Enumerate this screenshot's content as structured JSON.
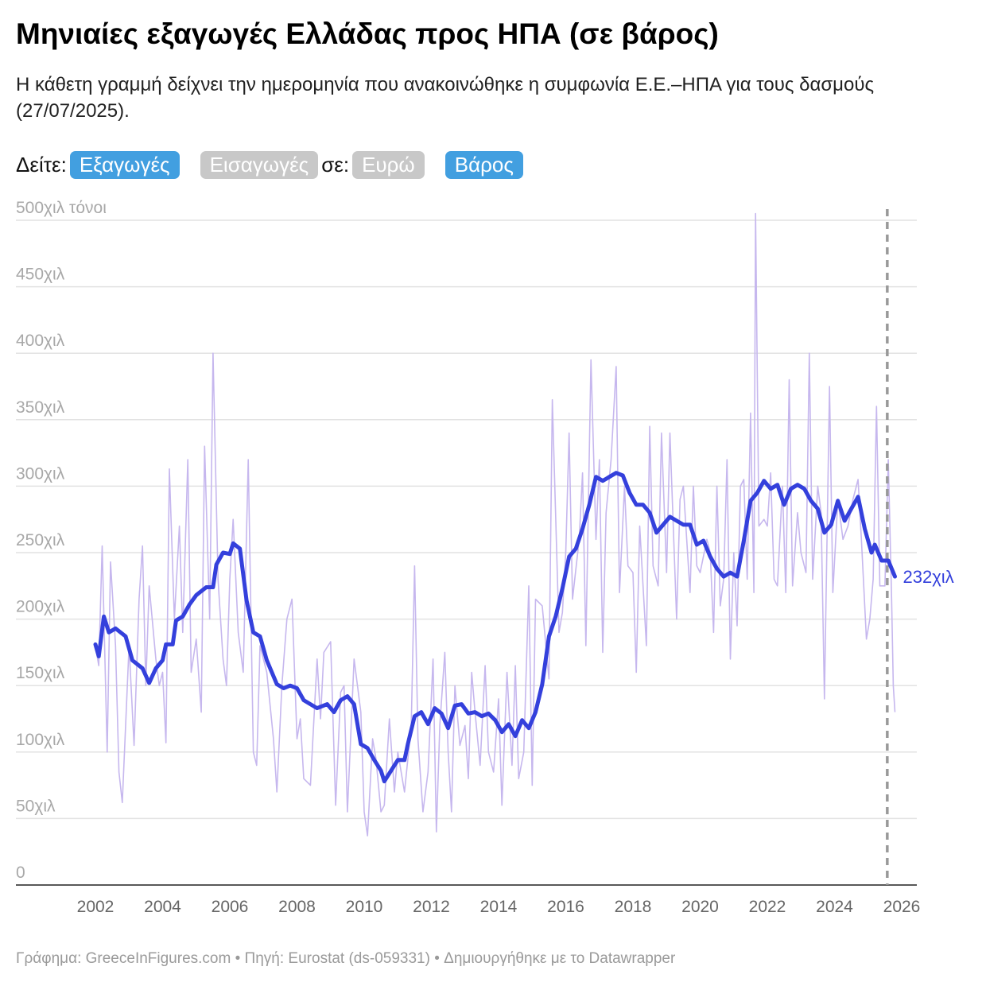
{
  "title": "Μηνιαίες εξαγωγές Ελλάδας προς ΗΠΑ (σε βάρος)",
  "subtitle": "Η κάθετη γραμμή δείχνει την ημερομηνία που ανακοινώθηκε η συμφωνία Ε.Ε.–ΗΠΑ για τους δασμούς (27/07/2025).",
  "controls": {
    "see_label": "Δείτε:",
    "exports": "Εξαγωγές",
    "imports": "Εισαγωγές",
    "in_label": "σε:",
    "euro": "Ευρώ",
    "weight": "Βάρος",
    "active_color": "#429fe0",
    "inactive_color": "#c8c8c8"
  },
  "footer": "Γράφημα: GreeceInFigures.com • Πηγή: Eurostat (ds-059331) • Δημιουργήθηκε με το Datawrapper",
  "chart_data": {
    "type": "line",
    "title": "Μηνιαίες εξαγωγές Ελλάδας προς ΗΠΑ (σε βάρος)",
    "ylabel": "",
    "unit_label": "τόνοι",
    "ylim": [
      0,
      500
    ],
    "xlim": [
      2002,
      2026
    ],
    "grid": true,
    "y_ticks": [
      "0",
      "50χιλ",
      "100χιλ",
      "150χιλ",
      "200χιλ",
      "250χιλ",
      "300χιλ",
      "350χιλ",
      "400χιλ",
      "450χιλ",
      "500χιλ τόνοι"
    ],
    "x_ticks": [
      "2002",
      "2004",
      "2006",
      "2008",
      "2010",
      "2012",
      "2014",
      "2016",
      "2018",
      "2020",
      "2022",
      "2024",
      "2026"
    ],
    "annotation_line": {
      "x": 2025.57,
      "label_date": "27/07/2025"
    },
    "end_label": "232χιλ",
    "series": [
      {
        "role": "smoothed",
        "color": "#3440dc",
        "x": [
          2002.0,
          2002.1,
          2002.25,
          2002.4,
          2002.6,
          2002.9,
          2003.1,
          2003.4,
          2003.6,
          2003.8,
          2004.0,
          2004.1,
          2004.3,
          2004.4,
          2004.6,
          2004.8,
          2005.0,
          2005.3,
          2005.5,
          2005.6,
          2005.8,
          2006.0,
          2006.1,
          2006.3,
          2006.5,
          2006.7,
          2006.9,
          2007.1,
          2007.4,
          2007.6,
          2007.8,
          2008.0,
          2008.2,
          2008.4,
          2008.6,
          2008.9,
          2009.1,
          2009.3,
          2009.5,
          2009.7,
          2009.9,
          2010.1,
          2010.3,
          2010.5,
          2010.6,
          2010.8,
          2011.0,
          2011.2,
          2011.3,
          2011.5,
          2011.7,
          2011.9,
          2012.1,
          2012.3,
          2012.5,
          2012.7,
          2012.9,
          2013.1,
          2013.3,
          2013.5,
          2013.7,
          2013.9,
          2014.1,
          2014.3,
          2014.5,
          2014.7,
          2014.9,
          2015.1,
          2015.3,
          2015.5,
          2015.7,
          2015.9,
          2016.1,
          2016.3,
          2016.5,
          2016.7,
          2016.9,
          2017.1,
          2017.3,
          2017.5,
          2017.7,
          2017.9,
          2018.1,
          2018.3,
          2018.5,
          2018.7,
          2018.9,
          2019.1,
          2019.3,
          2019.5,
          2019.7,
          2019.9,
          2020.1,
          2020.3,
          2020.5,
          2020.7,
          2020.9,
          2021.1,
          2021.3,
          2021.5,
          2021.7,
          2021.9,
          2022.1,
          2022.3,
          2022.5,
          2022.7,
          2022.9,
          2023.1,
          2023.3,
          2023.5,
          2023.7,
          2023.9,
          2024.1,
          2024.3,
          2024.5,
          2024.7,
          2024.9,
          2025.1,
          2025.2,
          2025.4,
          2025.6,
          2025.8
        ],
        "y": [
          181,
          172,
          202,
          190,
          193,
          187,
          169,
          163,
          152,
          163,
          169,
          181,
          181,
          199,
          202,
          211,
          218,
          224,
          224,
          241,
          250,
          249,
          257,
          253,
          214,
          190,
          187,
          169,
          151,
          148,
          150,
          148,
          139,
          136,
          133,
          136,
          130,
          139,
          142,
          136,
          106,
          103,
          94,
          86,
          78,
          86,
          94,
          94,
          106,
          127,
          130,
          121,
          133,
          129,
          118,
          135,
          136,
          129,
          130,
          127,
          129,
          124,
          115,
          121,
          112,
          124,
          118,
          130,
          151,
          187,
          202,
          223,
          247,
          253,
          268,
          286,
          307,
          304,
          307,
          310,
          308,
          295,
          286,
          286,
          280,
          265,
          271,
          277,
          274,
          271,
          271,
          256,
          259,
          247,
          238,
          232,
          235,
          232,
          259,
          289,
          295,
          304,
          298,
          301,
          286,
          298,
          301,
          298,
          289,
          283,
          265,
          271,
          289,
          274,
          283,
          292,
          268,
          250,
          256,
          244,
          244,
          232
        ]
      },
      {
        "role": "monthly",
        "color": "#c6b7ee",
        "x": [
          2002.0,
          2002.1,
          2002.2,
          2002.35,
          2002.45,
          2002.6,
          2002.7,
          2002.8,
          2003.0,
          2003.15,
          2003.3,
          2003.4,
          2003.5,
          2003.6,
          2003.8,
          2003.9,
          2004.0,
          2004.1,
          2004.2,
          2004.35,
          2004.5,
          2004.6,
          2004.75,
          2004.85,
          2005.0,
          2005.15,
          2005.25,
          2005.4,
          2005.5,
          2005.65,
          2005.8,
          2005.9,
          2006.0,
          2006.1,
          2006.25,
          2006.4,
          2006.55,
          2006.7,
          2006.8,
          2006.9,
          2007.1,
          2007.3,
          2007.4,
          2007.55,
          2007.7,
          2007.85,
          2008.0,
          2008.1,
          2008.2,
          2008.4,
          2008.6,
          2008.7,
          2008.8,
          2009.0,
          2009.15,
          2009.3,
          2009.4,
          2009.5,
          2009.7,
          2009.9,
          2010.0,
          2010.1,
          2010.25,
          2010.35,
          2010.5,
          2010.6,
          2010.75,
          2010.9,
          2011.0,
          2011.2,
          2011.4,
          2011.5,
          2011.6,
          2011.75,
          2011.9,
          2012.05,
          2012.15,
          2012.25,
          2012.4,
          2012.5,
          2012.6,
          2012.7,
          2012.85,
          2013.0,
          2013.1,
          2013.2,
          2013.3,
          2013.45,
          2013.6,
          2013.7,
          2013.85,
          2014.0,
          2014.1,
          2014.25,
          2014.4,
          2014.5,
          2014.6,
          2014.75,
          2014.9,
          2015.0,
          2015.1,
          2015.3,
          2015.5,
          2015.6,
          2015.8,
          2015.9,
          2016.0,
          2016.1,
          2016.2,
          2016.4,
          2016.5,
          2016.6,
          2016.75,
          2016.9,
          2017.0,
          2017.1,
          2017.2,
          2017.35,
          2017.5,
          2017.6,
          2017.75,
          2017.85,
          2018.0,
          2018.1,
          2018.2,
          2018.4,
          2018.5,
          2018.6,
          2018.75,
          2018.85,
          2019.0,
          2019.1,
          2019.3,
          2019.4,
          2019.5,
          2019.7,
          2019.8,
          2019.9,
          2020.0,
          2020.2,
          2020.3,
          2020.4,
          2020.5,
          2020.6,
          2020.7,
          2020.8,
          2020.9,
          2021.0,
          2021.1,
          2021.2,
          2021.3,
          2021.4,
          2021.5,
          2021.6,
          2021.65,
          2021.75,
          2021.9,
          2022.0,
          2022.1,
          2022.2,
          2022.3,
          2022.45,
          2022.55,
          2022.65,
          2022.75,
          2022.9,
          2023.0,
          2023.15,
          2023.25,
          2023.35,
          2023.5,
          2023.6,
          2023.7,
          2023.85,
          2023.95,
          2024.1,
          2024.25,
          2024.4,
          2024.55,
          2024.7,
          2024.8,
          2024.95,
          2025.05,
          2025.15,
          2025.25,
          2025.35,
          2025.5,
          2025.6,
          2025.7,
          2025.75,
          2025.8
        ],
        "y": [
          180,
          165,
          255,
          100,
          243,
          180,
          85,
          62,
          180,
          105,
          215,
          255,
          150,
          225,
          170,
          150,
          160,
          107,
          313,
          200,
          270,
          190,
          320,
          160,
          185,
          130,
          330,
          200,
          400,
          230,
          170,
          150,
          230,
          275,
          190,
          160,
          320,
          100,
          90,
          180,
          160,
          110,
          70,
          150,
          200,
          215,
          110,
          125,
          80,
          75,
          170,
          125,
          175,
          183,
          60,
          145,
          150,
          55,
          170,
          130,
          55,
          37,
          110,
          95,
          55,
          60,
          125,
          70,
          100,
          70,
          120,
          240,
          110,
          55,
          85,
          170,
          40,
          120,
          175,
          100,
          55,
          150,
          105,
          120,
          80,
          160,
          130,
          90,
          165,
          100,
          85,
          140,
          60,
          160,
          90,
          165,
          80,
          100,
          225,
          75,
          215,
          210,
          155,
          365,
          190,
          205,
          250,
          340,
          215,
          260,
          310,
          180,
          395,
          260,
          320,
          175,
          280,
          320,
          390,
          220,
          300,
          240,
          235,
          160,
          270,
          180,
          345,
          240,
          225,
          340,
          235,
          340,
          200,
          290,
          300,
          220,
          300,
          240,
          235,
          260,
          250,
          190,
          300,
          210,
          230,
          320,
          170,
          250,
          195,
          300,
          305,
          230,
          355,
          220,
          505,
          270,
          275,
          270,
          310,
          230,
          225,
          300,
          220,
          380,
          225,
          280,
          250,
          235,
          400,
          230,
          300,
          280,
          140,
          375,
          220,
          290,
          260,
          270,
          290,
          305,
          260,
          185,
          200,
          230,
          360,
          225,
          225,
          320,
          215,
          150,
          130
        ]
      }
    ]
  }
}
